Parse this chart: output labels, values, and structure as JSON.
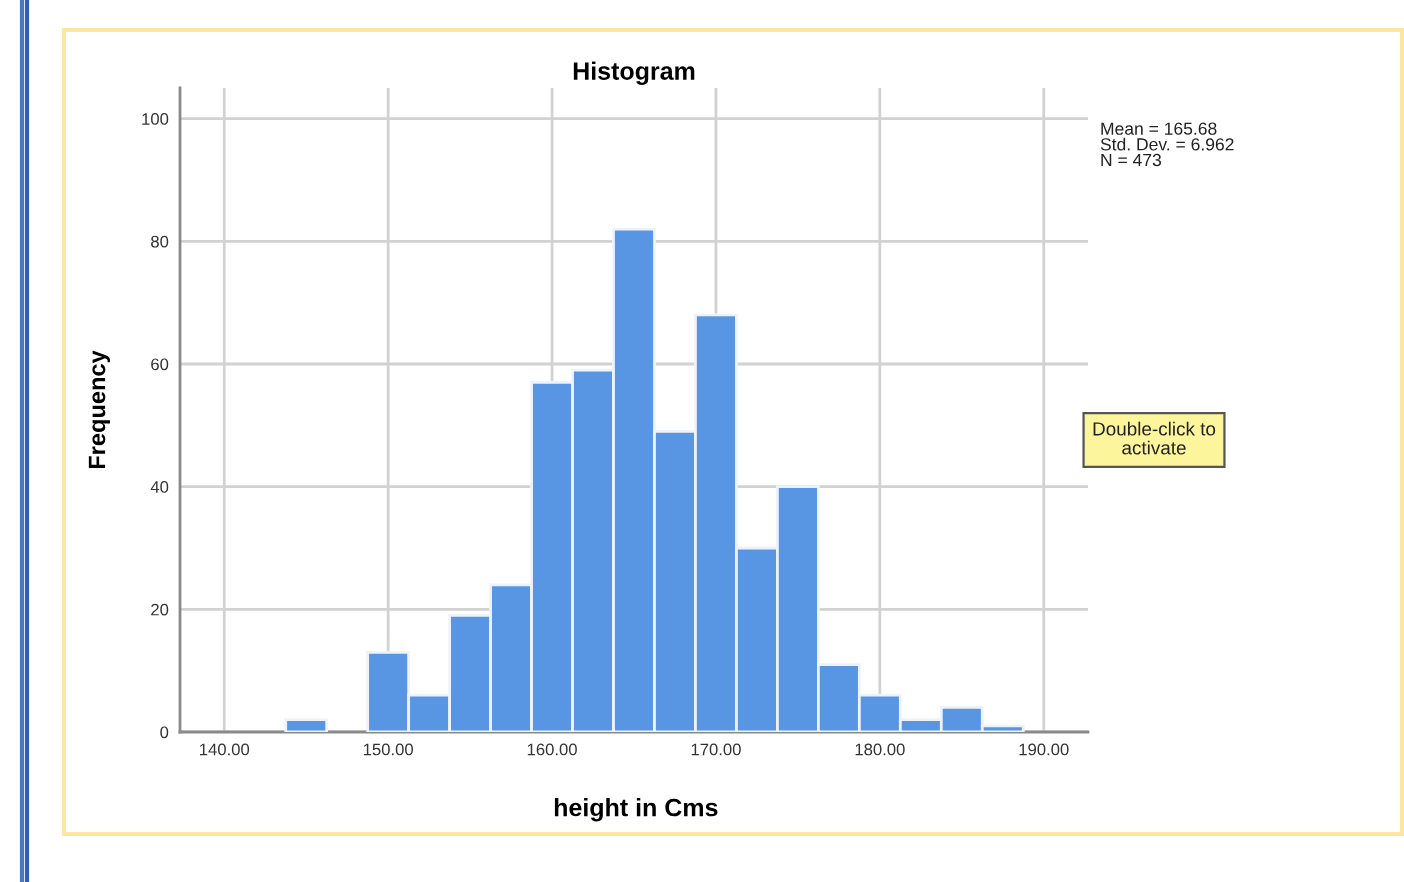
{
  "chart_data": {
    "type": "histogram",
    "title": "Histogram",
    "xlabel": "height in Cms",
    "ylabel": "Frequency",
    "bins": [
      143.75,
      146.25,
      148.75,
      151.25,
      153.75,
      156.25,
      158.75,
      161.25,
      163.75,
      166.25,
      168.75,
      171.25,
      173.75,
      176.25,
      178.75,
      181.25,
      183.75,
      186.25,
      188.75
    ],
    "values": [
      2,
      0,
      13,
      6,
      19,
      24,
      57,
      59,
      82,
      49,
      68,
      30,
      40,
      11,
      6,
      2,
      4,
      1
    ],
    "color": "#5896e4",
    "xlim": [
      137.3,
      192.7
    ],
    "ylim": [
      0,
      105
    ],
    "xticks": [
      {
        "value": 140,
        "label": "140.00"
      },
      {
        "value": 150,
        "label": "150.00"
      },
      {
        "value": 160,
        "label": "160.00"
      },
      {
        "value": 170,
        "label": "170.00"
      },
      {
        "value": 180,
        "label": "180.00"
      },
      {
        "value": 190,
        "label": "190.00"
      }
    ],
    "yticks": [
      0,
      20,
      40,
      60,
      80,
      100
    ],
    "grid": true,
    "annotations": [
      "Mean = 165.68\nStd. Dev. = 6.962\nN = 473",
      "Double-click to\nactivate"
    ]
  }
}
